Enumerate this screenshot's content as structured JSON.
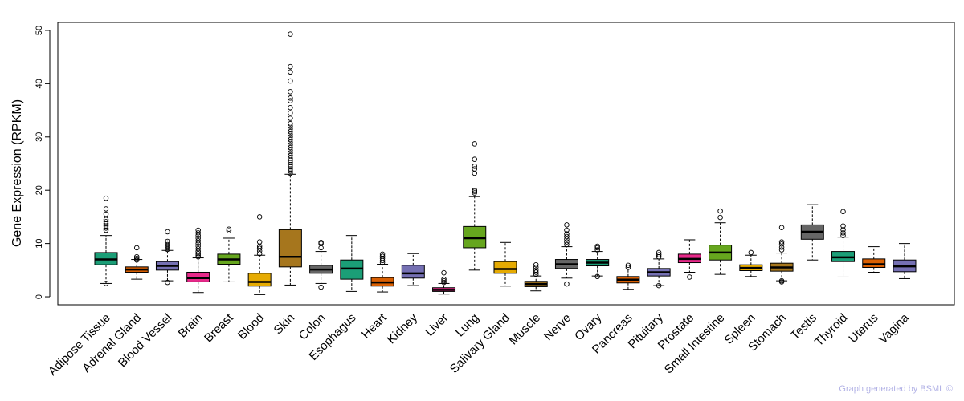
{
  "chart_data": {
    "type": "box",
    "ylabel": "Gene Expression (RPKM)",
    "ylim": [
      -1.5,
      51.5
    ],
    "yticks": [
      0,
      10,
      20,
      30,
      40,
      50
    ],
    "highlight": {
      "category": "Brain",
      "color": "#ff0000"
    },
    "categories": [
      {
        "name": "Adipose Tissue",
        "color": "#1b9e77",
        "min": 2.5,
        "q1": 6.0,
        "median": 7.0,
        "q3": 8.3,
        "max": 11.5,
        "outliers": [
          2.5,
          12.5,
          12.9,
          13.3,
          13.7,
          14.1,
          14.5,
          15.5,
          16.5,
          18.5
        ]
      },
      {
        "name": "Adrenal Gland",
        "color": "#d95f02",
        "min": 3.3,
        "q1": 4.6,
        "median": 5.1,
        "q3": 5.6,
        "max": 7.0,
        "outliers": [
          6.9,
          7.2,
          7.5,
          9.2
        ]
      },
      {
        "name": "Blood Vessel",
        "color": "#7570b3",
        "min": 3.0,
        "q1": 5.0,
        "median": 5.8,
        "q3": 6.6,
        "max": 8.7,
        "outliers": [
          2.7,
          8.9,
          9.2,
          9.5,
          9.8,
          10.1,
          10.4,
          12.2
        ]
      },
      {
        "name": "Brain",
        "color": "#e7298a",
        "min": 0.8,
        "q1": 2.8,
        "median": 3.5,
        "q3": 4.6,
        "max": 7.3,
        "outliers": [
          7.5,
          7.8,
          8.1,
          8.5,
          9.0,
          9.5,
          10.0,
          10.5,
          11.0,
          11.5,
          12.0,
          12.5
        ]
      },
      {
        "name": "Breast",
        "color": "#66a61e",
        "min": 2.8,
        "q1": 6.1,
        "median": 7.0,
        "q3": 8.0,
        "max": 11.0,
        "outliers": [
          12.4,
          12.7
        ]
      },
      {
        "name": "Blood",
        "color": "#e6ab02",
        "min": 0.4,
        "q1": 2.0,
        "median": 2.8,
        "q3": 4.4,
        "max": 7.8,
        "outliers": [
          8.1,
          8.6,
          9.1,
          9.5,
          10.3,
          15.0
        ]
      },
      {
        "name": "Skin",
        "color": "#a6761d",
        "min": 2.2,
        "q1": 5.6,
        "median": 7.5,
        "q3": 12.6,
        "max": 23.0,
        "outliers": [
          23.2,
          23.6,
          24.0,
          24.4,
          24.8,
          25.2,
          25.6,
          26.0,
          26.5,
          27.0,
          27.5,
          28.0,
          28.5,
          29.0,
          29.5,
          30.0,
          30.5,
          31.0,
          31.5,
          32.0,
          32.5,
          33.5,
          34.5,
          35.5,
          36.8,
          37.3,
          38.5,
          40.5,
          42.2,
          43.2,
          49.3
        ]
      },
      {
        "name": "Colon",
        "color": "#666666",
        "min": 2.5,
        "q1": 4.4,
        "median": 5.1,
        "q3": 5.9,
        "max": 8.5,
        "outliers": [
          1.8,
          9.2,
          10.0,
          10.2
        ]
      },
      {
        "name": "Esophagus",
        "color": "#1b9e77",
        "min": 1.0,
        "q1": 3.3,
        "median": 5.3,
        "q3": 6.9,
        "max": 11.5,
        "outliers": []
      },
      {
        "name": "Heart",
        "color": "#d95f02",
        "min": 0.9,
        "q1": 2.0,
        "median": 2.7,
        "q3": 3.6,
        "max": 6.1,
        "outliers": [
          6.4,
          6.8,
          7.2,
          7.6,
          8.0
        ]
      },
      {
        "name": "Kidney",
        "color": "#7570b3",
        "min": 2.1,
        "q1": 3.5,
        "median": 4.4,
        "q3": 5.9,
        "max": 8.1,
        "outliers": []
      },
      {
        "name": "Liver",
        "color": "#e7298a",
        "min": 0.5,
        "q1": 1.0,
        "median": 1.3,
        "q3": 1.7,
        "max": 2.5,
        "outliers": [
          2.7,
          3.0,
          3.3,
          4.5
        ]
      },
      {
        "name": "Lung",
        "color": "#66a61e",
        "min": 5.0,
        "q1": 9.2,
        "median": 11.0,
        "q3": 13.2,
        "max": 18.8,
        "outliers": [
          19.5,
          19.8,
          20.0,
          23.2,
          24.0,
          24.5,
          25.8,
          28.7
        ]
      },
      {
        "name": "Salivary Gland",
        "color": "#e6ab02",
        "min": 2.0,
        "q1": 4.4,
        "median": 5.2,
        "q3": 6.6,
        "max": 10.2,
        "outliers": []
      },
      {
        "name": "Muscle",
        "color": "#a6761d",
        "min": 1.1,
        "q1": 1.9,
        "median": 2.4,
        "q3": 2.9,
        "max": 3.9,
        "outliers": [
          4.2,
          4.6,
          5.0,
          5.5,
          6.0
        ]
      },
      {
        "name": "Nerve",
        "color": "#666666",
        "min": 3.5,
        "q1": 5.3,
        "median": 6.1,
        "q3": 7.0,
        "max": 9.4,
        "outliers": [
          2.4,
          9.8,
          10.3,
          10.8,
          11.3,
          11.8,
          12.5,
          13.5
        ]
      },
      {
        "name": "Ovary",
        "color": "#1b9e77",
        "min": 3.9,
        "q1": 5.8,
        "median": 6.4,
        "q3": 7.0,
        "max": 8.5,
        "outliers": [
          3.8,
          8.8,
          9.2,
          9.5
        ]
      },
      {
        "name": "Pancreas",
        "color": "#d95f02",
        "min": 1.4,
        "q1": 2.6,
        "median": 3.2,
        "q3": 3.8,
        "max": 5.2,
        "outliers": [
          5.5,
          5.9
        ]
      },
      {
        "name": "Pituitary",
        "color": "#7570b3",
        "min": 2.1,
        "q1": 3.9,
        "median": 4.6,
        "q3": 5.3,
        "max": 7.1,
        "outliers": [
          2.1,
          7.5,
          7.9,
          8.3
        ]
      },
      {
        "name": "Prostate",
        "color": "#e7298a",
        "min": 4.6,
        "q1": 6.4,
        "median": 7.1,
        "q3": 8.0,
        "max": 10.7,
        "outliers": [
          3.7
        ]
      },
      {
        "name": "Small Intestine",
        "color": "#66a61e",
        "min": 4.2,
        "q1": 6.9,
        "median": 8.3,
        "q3": 9.7,
        "max": 13.9,
        "outliers": [
          14.9,
          16.1
        ]
      },
      {
        "name": "Spleen",
        "color": "#e6ab02",
        "min": 3.8,
        "q1": 4.9,
        "median": 5.4,
        "q3": 6.0,
        "max": 7.8,
        "outliers": [
          8.3
        ]
      },
      {
        "name": "Stomach",
        "color": "#a6761d",
        "min": 3.0,
        "q1": 4.8,
        "median": 5.5,
        "q3": 6.3,
        "max": 8.2,
        "outliers": [
          2.8,
          3.0,
          8.8,
          9.3,
          9.9,
          10.3,
          13.0
        ]
      },
      {
        "name": "Testis",
        "color": "#666666",
        "min": 6.9,
        "q1": 10.8,
        "median": 12.2,
        "q3": 13.5,
        "max": 17.3,
        "outliers": []
      },
      {
        "name": "Thyroid",
        "color": "#1b9e77",
        "min": 3.7,
        "q1": 6.6,
        "median": 7.4,
        "q3": 8.5,
        "max": 11.2,
        "outliers": [
          11.5,
          12.0,
          12.6,
          13.3,
          16.0
        ]
      },
      {
        "name": "Uterus",
        "color": "#d95f02",
        "min": 4.6,
        "q1": 5.5,
        "median": 6.1,
        "q3": 7.1,
        "max": 9.4,
        "outliers": []
      },
      {
        "name": "Vagina",
        "color": "#7570b3",
        "min": 3.4,
        "q1": 4.7,
        "median": 5.7,
        "q3": 6.9,
        "max": 10.0,
        "outliers": []
      }
    ]
  },
  "footer": {
    "credit": "Graph generated by BSML ©"
  }
}
